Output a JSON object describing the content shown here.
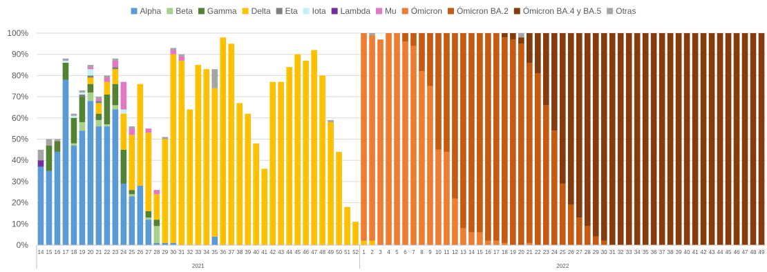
{
  "chart_data": {
    "type": "bar",
    "stacked": true,
    "normalized_percent": true,
    "legend_position": "top",
    "ylim": [
      0,
      100
    ],
    "yticks": [
      "0%",
      "10%",
      "20%",
      "30%",
      "40%",
      "50%",
      "60%",
      "70%",
      "80%",
      "90%",
      "100%"
    ],
    "years": [
      {
        "label": "2021",
        "weeks": [
          "14",
          "15",
          "16",
          "17",
          "18",
          "19",
          "20",
          "21",
          "22",
          "23",
          "24",
          "25",
          "26",
          "27",
          "28",
          "29",
          "30",
          "31",
          "32",
          "33",
          "34",
          "35",
          "36",
          "37",
          "38",
          "39",
          "40",
          "41",
          "42",
          "43",
          "44",
          "45",
          "46",
          "47",
          "48",
          "49",
          "50",
          "51",
          "52"
        ]
      },
      {
        "label": "2022",
        "weeks": [
          "1",
          "2",
          "3",
          "4",
          "5",
          "6",
          "7",
          "8",
          "9",
          "10",
          "11",
          "12",
          "13",
          "14",
          "15",
          "16",
          "17",
          "18",
          "19",
          "20",
          "21",
          "22",
          "23",
          "24",
          "25",
          "26",
          "27",
          "28",
          "29",
          "30",
          "31",
          "32",
          "33",
          "34",
          "35",
          "36",
          "37",
          "38",
          "39",
          "40",
          "41",
          "42",
          "43",
          "44",
          "45",
          "46",
          "47",
          "48",
          "49"
        ]
      }
    ],
    "series": [
      {
        "name": "Alpha",
        "color": "#5B9BD5",
        "values": [
          37,
          35,
          44,
          78,
          47,
          54,
          68,
          56,
          56,
          64,
          29,
          23,
          28,
          12,
          1,
          1,
          1,
          0,
          0,
          0,
          0,
          4,
          0,
          0,
          0,
          0,
          0,
          0,
          0,
          0,
          0,
          0,
          0,
          0,
          0,
          0,
          0,
          0,
          0,
          0,
          0,
          0,
          0,
          0,
          0,
          0,
          0,
          0,
          0,
          0,
          0,
          0,
          0,
          0,
          0,
          0,
          0,
          0,
          0,
          0,
          0,
          0,
          0,
          0,
          0,
          0,
          0,
          0,
          0,
          0,
          0,
          0,
          0,
          0,
          0,
          0,
          0,
          0,
          0,
          0,
          0,
          0,
          0,
          0,
          0,
          0,
          0,
          0
        ]
      },
      {
        "name": "Beta",
        "color": "#A9D18E",
        "values": [
          0,
          0,
          0,
          0,
          1,
          4,
          4,
          3,
          1,
          2,
          0,
          1,
          0,
          1,
          8,
          0,
          0,
          0,
          0,
          0,
          0,
          0,
          0,
          0,
          0,
          0,
          0,
          0,
          0,
          0,
          0,
          0,
          0,
          0,
          0,
          0,
          0,
          0,
          0,
          0,
          0,
          0,
          0,
          0,
          0,
          0,
          0,
          0,
          0,
          0,
          0,
          0,
          0,
          0,
          0,
          0,
          0,
          0,
          0,
          0,
          0,
          0,
          0,
          0,
          0,
          0,
          0,
          0,
          0,
          0,
          0,
          0,
          0,
          0,
          0,
          0,
          0,
          0,
          0,
          0,
          0,
          0,
          0,
          0,
          0,
          0,
          0,
          0
        ]
      },
      {
        "name": "Gamma",
        "color": "#548235",
        "values": [
          0,
          12,
          5,
          8,
          12,
          12,
          4,
          3,
          14,
          10,
          16,
          2,
          0,
          3,
          3,
          0,
          0,
          0,
          0,
          0,
          0,
          0,
          0,
          0,
          0,
          0,
          0,
          0,
          0,
          0,
          0,
          0,
          0,
          0,
          0,
          0,
          0,
          0,
          0,
          0,
          0,
          0,
          0,
          0,
          0,
          0,
          0,
          0,
          0,
          0,
          0,
          0,
          0,
          0,
          0,
          0,
          0,
          0,
          0,
          0,
          0,
          0,
          0,
          0,
          0,
          0,
          0,
          0,
          0,
          0,
          0,
          0,
          0,
          0,
          0,
          0,
          0,
          0,
          0,
          0,
          0,
          0,
          0,
          0,
          0,
          0,
          0,
          0
        ]
      },
      {
        "name": "Delta",
        "color": "#FFC000",
        "values": [
          0,
          0,
          0,
          0,
          0,
          0,
          3,
          5,
          6,
          7,
          17,
          26,
          48,
          37,
          12,
          49,
          89,
          87,
          64,
          85,
          83,
          70,
          98,
          95,
          67,
          62,
          48,
          36,
          77,
          77,
          84,
          90,
          87,
          92,
          80,
          58,
          44,
          18,
          11,
          2,
          2,
          0,
          0,
          0,
          0,
          0,
          0,
          0,
          0,
          0,
          0,
          0,
          0,
          0,
          0,
          0,
          0,
          0,
          0,
          0,
          0,
          0,
          0,
          0,
          0,
          0,
          0,
          0,
          0,
          0,
          0,
          0,
          0,
          0,
          0,
          0,
          0,
          0,
          0,
          0,
          0,
          0,
          0,
          0,
          0,
          0,
          0,
          0
        ]
      },
      {
        "name": "Eta",
        "color": "#7F7F7F",
        "values": [
          0,
          0,
          0,
          0,
          0,
          1,
          1,
          1,
          0,
          1,
          0,
          0,
          0,
          0,
          0,
          0,
          0,
          0,
          0,
          0,
          0,
          0,
          0,
          0,
          0,
          0,
          0,
          0,
          0,
          0,
          0,
          0,
          0,
          0,
          0,
          0,
          0,
          0,
          0,
          0,
          0,
          0,
          0,
          0,
          0,
          0,
          0,
          0,
          0,
          0,
          0,
          0,
          0,
          0,
          0,
          0,
          0,
          0,
          0,
          0,
          0,
          0,
          0,
          0,
          0,
          0,
          0,
          0,
          0,
          0,
          0,
          0,
          0,
          0,
          0,
          0,
          0,
          0,
          0,
          0,
          0,
          0,
          0,
          0,
          0,
          0,
          0,
          0
        ]
      },
      {
        "name": "Iota",
        "color": "#C5F0F7",
        "values": [
          0,
          0,
          0,
          1,
          1,
          1,
          3,
          0,
          0,
          0,
          2,
          0,
          0,
          0,
          0,
          0,
          0,
          0,
          0,
          0,
          0,
          0,
          0,
          0,
          0,
          0,
          0,
          0,
          0,
          0,
          0,
          0,
          0,
          0,
          0,
          0,
          0,
          0,
          0,
          0,
          0,
          0,
          0,
          0,
          0,
          0,
          0,
          0,
          0,
          0,
          0,
          0,
          0,
          0,
          0,
          0,
          0,
          0,
          0,
          0,
          0,
          0,
          0,
          0,
          0,
          0,
          0,
          0,
          0,
          0,
          0,
          0,
          0,
          0,
          0,
          0,
          0,
          0,
          0,
          0,
          0,
          0,
          0,
          0,
          0,
          0,
          0,
          0
        ]
      },
      {
        "name": "Lambda",
        "color": "#7030A0",
        "values": [
          3,
          0,
          0,
          0,
          0,
          0,
          0,
          0,
          0,
          0,
          0,
          0,
          0,
          0,
          0,
          0,
          0,
          0,
          0,
          0,
          0,
          0,
          0,
          0,
          0,
          0,
          0,
          0,
          0,
          0,
          0,
          0,
          0,
          0,
          0,
          0,
          0,
          0,
          0,
          0,
          0,
          0,
          0,
          0,
          0,
          0,
          0,
          0,
          0,
          0,
          0,
          0,
          0,
          0,
          0,
          0,
          0,
          0,
          0,
          0,
          0,
          0,
          0,
          0,
          0,
          0,
          0,
          0,
          0,
          0,
          0,
          0,
          0,
          0,
          0,
          0,
          0,
          0,
          0,
          0,
          0,
          0,
          0,
          0,
          0,
          0,
          0,
          0
        ]
      },
      {
        "name": "Mu",
        "color": "#E377C2",
        "values": [
          0,
          0,
          0,
          0,
          0,
          0,
          1,
          1,
          2,
          3,
          13,
          3,
          0,
          2,
          2,
          0,
          2,
          2,
          0,
          0,
          0,
          0,
          0,
          0,
          0,
          0,
          0,
          0,
          0,
          0,
          0,
          0,
          0,
          0,
          0,
          0,
          0,
          0,
          0,
          0,
          0,
          0,
          0,
          0,
          0,
          0,
          0,
          0,
          0,
          0,
          0,
          0,
          0,
          0,
          0,
          0,
          0,
          0,
          0,
          0,
          0,
          0,
          0,
          0,
          0,
          0,
          0,
          0,
          0,
          0,
          0,
          0,
          0,
          0,
          0,
          0,
          0,
          0,
          0,
          0,
          0,
          0,
          0,
          0,
          0,
          0,
          0,
          0
        ]
      },
      {
        "name": "Ómicron",
        "color": "#ED7D31",
        "values": [
          0,
          0,
          0,
          0,
          0,
          0,
          0,
          0,
          0,
          0,
          0,
          0,
          0,
          0,
          0,
          0,
          0,
          0,
          0,
          0,
          0,
          0,
          0,
          0,
          0,
          0,
          0,
          0,
          0,
          0,
          0,
          0,
          0,
          0,
          0,
          0,
          0,
          0,
          0,
          98,
          97,
          97,
          100,
          100,
          96,
          94,
          82,
          75,
          45,
          44,
          22,
          8,
          6,
          6,
          2,
          2,
          1,
          0,
          0,
          1,
          0,
          0,
          0,
          0,
          0,
          0,
          0,
          0,
          0,
          0,
          0,
          0,
          0,
          0,
          0,
          0,
          0,
          0,
          0,
          0,
          0,
          0,
          0,
          0,
          0,
          0,
          0,
          0
        ]
      },
      {
        "name": "Ómicron BA.2",
        "color": "#C55A11",
        "values": [
          0,
          0,
          0,
          0,
          0,
          0,
          0,
          0,
          0,
          0,
          0,
          0,
          0,
          0,
          0,
          0,
          0,
          0,
          0,
          0,
          0,
          0,
          0,
          0,
          0,
          0,
          0,
          0,
          0,
          0,
          0,
          0,
          0,
          0,
          0,
          0,
          0,
          0,
          0,
          0,
          0,
          0,
          0,
          0,
          4,
          6,
          18,
          25,
          55,
          56,
          78,
          92,
          94,
          94,
          98,
          98,
          97,
          97,
          95,
          85,
          81,
          66,
          54,
          29,
          19,
          13,
          9,
          4,
          2,
          0,
          0,
          0,
          0,
          0,
          0,
          0,
          0,
          0,
          0,
          0,
          0,
          0,
          0,
          0,
          0,
          0,
          0,
          0
        ]
      },
      {
        "name": "Ómicron BA.4 y BA.5",
        "color": "#843C0C",
        "values": [
          0,
          0,
          0,
          0,
          0,
          0,
          0,
          0,
          0,
          0,
          0,
          0,
          0,
          0,
          0,
          0,
          0,
          0,
          0,
          0,
          0,
          0,
          0,
          0,
          0,
          0,
          0,
          0,
          0,
          0,
          0,
          0,
          0,
          0,
          0,
          0,
          0,
          0,
          0,
          0,
          0,
          0,
          0,
          0,
          0,
          0,
          0,
          0,
          0,
          0,
          0,
          0,
          0,
          0,
          0,
          0,
          2,
          3,
          3,
          14,
          19,
          34,
          46,
          71,
          81,
          87,
          91,
          96,
          98,
          100,
          100,
          100,
          100,
          100,
          100,
          100,
          100,
          100,
          100,
          100,
          100,
          100,
          100,
          100,
          100,
          100,
          100,
          100
        ]
      },
      {
        "name": "Otras",
        "color": "#A5A5A5",
        "values": [
          5,
          3,
          1,
          1,
          1,
          1,
          1,
          1,
          1,
          1,
          0,
          1,
          0,
          0,
          0,
          1,
          1,
          1,
          0,
          0,
          0,
          9,
          0,
          0,
          0,
          0,
          0,
          0,
          0,
          0,
          0,
          0,
          0,
          0,
          0,
          1,
          0,
          0,
          0,
          0,
          1,
          0,
          0,
          0,
          0,
          0,
          0,
          0,
          0,
          0,
          0,
          0,
          0,
          0,
          0,
          0,
          0,
          0,
          2,
          0,
          0,
          0,
          0,
          0,
          0,
          0,
          0,
          0,
          0,
          0,
          0,
          0,
          0,
          0,
          0,
          0,
          0,
          0,
          0,
          0,
          0,
          0,
          0,
          0,
          0,
          0,
          0,
          0
        ]
      }
    ]
  }
}
